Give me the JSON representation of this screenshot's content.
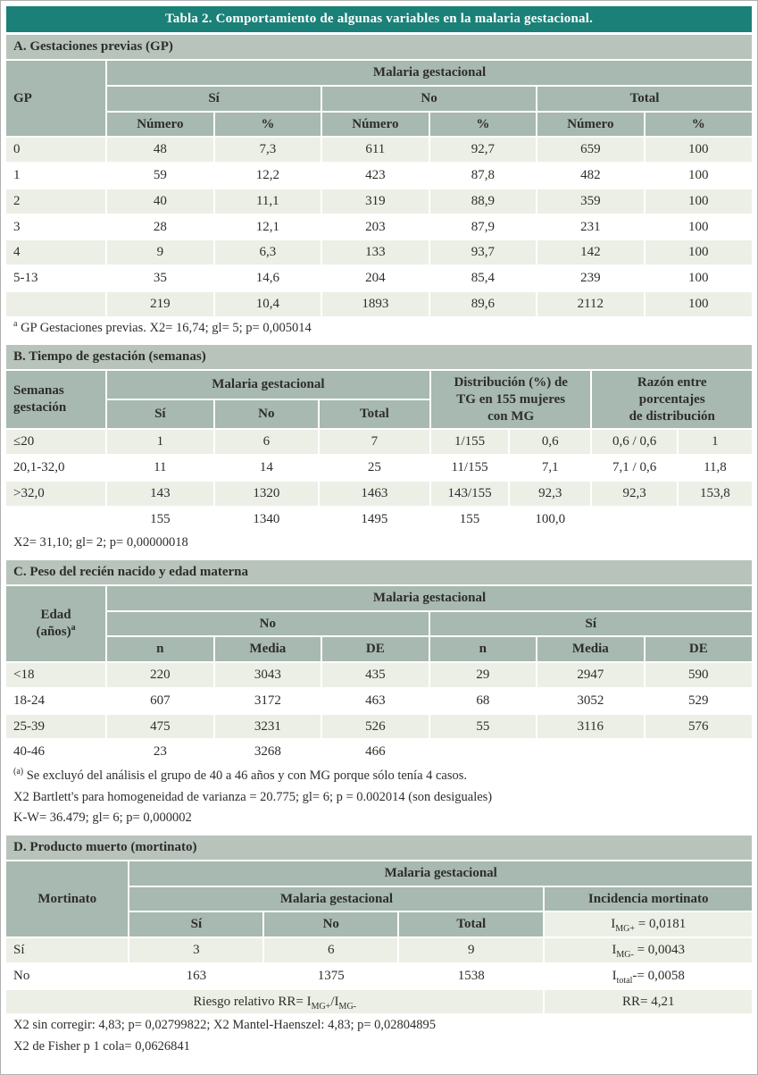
{
  "title": "Tabla 2. Comportamiento de algunas variables en la malaria gestacional.",
  "colors": {
    "title_bar": "#1a8078",
    "title_text": "#ffffff",
    "section_header": "#b7c3bb",
    "table_header": "#a7b9b0",
    "row_shaded": "#ecefe6",
    "row_white": "#ffffff",
    "text": "#2e2d2b"
  },
  "sections": [
    {
      "id": "A",
      "header": "A. Gestaciones previas (GP)",
      "table": {
        "header_rows": [
          [
            {
              "t": "GP",
              "rs": 3,
              "al": "l"
            },
            {
              "t": "Malaria gestacional",
              "cs": 6
            }
          ],
          [
            {
              "t": "Sí",
              "cs": 2
            },
            {
              "t": "No",
              "cs": 2
            },
            {
              "t": "Total",
              "cs": 2
            }
          ],
          [
            {
              "t": "Número"
            },
            {
              "t": "%"
            },
            {
              "t": "Número"
            },
            {
              "t": "%"
            },
            {
              "t": "Número"
            },
            {
              "t": "%"
            }
          ]
        ],
        "rows": [
          [
            "0",
            "48",
            "7,3",
            "611",
            "92,7",
            "659",
            "100"
          ],
          [
            "1",
            "59",
            "12,2",
            "423",
            "87,8",
            "482",
            "100"
          ],
          [
            "2",
            "40",
            "11,1",
            "319",
            "88,9",
            "359",
            "100"
          ],
          [
            "3",
            "28",
            "12,1",
            "203",
            "87,9",
            "231",
            "100"
          ],
          [
            "4",
            "9",
            "6,3",
            "133",
            "93,7",
            "142",
            "100"
          ],
          [
            "5-13",
            "35",
            "14,6",
            "204",
            "85,4",
            "239",
            "100"
          ],
          [
            "",
            "219",
            "10,4",
            "1893",
            "89,6",
            "2112",
            "100"
          ]
        ]
      },
      "footnotes": [
        "^a^ GP Gestaciones previas. X2= 16,74; gl= 5; p= 0,005014"
      ]
    },
    {
      "id": "B",
      "header": "B. Tiempo de gestación (semanas)",
      "table": {
        "header_rows": [
          [
            {
              "t": "Semanas\ngestación",
              "rs": 2,
              "al": "l"
            },
            {
              "t": "Malaria gestacional",
              "cs": 3
            },
            {
              "t": "Distribución (%) de\nTG en 155 mujeres\ncon MG",
              "cs": 2,
              "rs": 2
            },
            {
              "t": "Razón entre\nporcentajes\nde distribución",
              "cs": 2,
              "rs": 2
            }
          ],
          [
            {
              "t": "Sí"
            },
            {
              "t": "No"
            },
            {
              "t": "Total"
            }
          ]
        ],
        "rows": [
          [
            "≤20",
            "1",
            "6",
            "7",
            "1/155",
            "0,6",
            "0,6 / 0,6",
            "1"
          ],
          [
            "20,1-32,0",
            "11",
            "14",
            "25",
            "11/155",
            "7,1",
            "7,1 / 0,6",
            "11,8"
          ],
          [
            ">32,0",
            "143",
            "1320",
            "1463",
            "143/155",
            "92,3",
            "92,3",
            "153,8"
          ],
          [
            "",
            "155",
            "1340",
            "1495",
            "155",
            "100,0",
            "",
            ""
          ]
        ]
      },
      "footnotes": [
        "X2= 31,10; gl= 2; p= 0,00000018"
      ]
    },
    {
      "id": "C",
      "header": "C. Peso del recién nacido y edad materna",
      "table": {
        "header_rows": [
          [
            {
              "t": "Edad\n(años)^a^",
              "rs": 3
            },
            {
              "t": "Malaria gestacional",
              "cs": 6
            }
          ],
          [
            {
              "t": "No",
              "cs": 3
            },
            {
              "t": "Sí",
              "cs": 3
            }
          ],
          [
            {
              "t": "n"
            },
            {
              "t": "Media"
            },
            {
              "t": "DE"
            },
            {
              "t": "n"
            },
            {
              "t": "Media"
            },
            {
              "t": "DE"
            }
          ]
        ],
        "rows": [
          [
            "<18",
            "220",
            "3043",
            "435",
            "29",
            "2947",
            "590"
          ],
          [
            "18-24",
            "607",
            "3172",
            "463",
            "68",
            "3052",
            "529"
          ],
          [
            "25-39",
            "475",
            "3231",
            "526",
            "55",
            "3116",
            "576"
          ],
          [
            "40-46",
            "23",
            "3268",
            "466",
            "",
            "",
            ""
          ]
        ]
      },
      "footnotes": [
        "^(a)^ Se excluyó del análisis el grupo de 40 a 46 años y con MG porque sólo tenía 4 casos.",
        "X2 Bartlett's para homogeneidad de varianza = 20.775; gl= 6; p = 0.002014 (son desiguales)",
        "K-W= 36.479; gl= 6; p= 0,000002"
      ]
    },
    {
      "id": "D",
      "header": "D. Producto muerto (mortinato)",
      "table": {
        "header_rows": [
          [
            {
              "t": "Mortinato",
              "rs": 3
            },
            {
              "t": "Malaria gestacional",
              "cs": 4
            }
          ],
          [
            {
              "t": "Malaria gestacional",
              "cs": 3
            },
            {
              "t": "Incidencia mortinato"
            }
          ],
          [
            {
              "t": "Sí"
            },
            {
              "t": "No"
            },
            {
              "t": "Total"
            },
            {
              "t": "I~MG+~ = 0,0181",
              "d": 1
            }
          ]
        ],
        "rows": [
          [
            "Sí",
            "3",
            "6",
            "9",
            "I~MG-~ = 0,0043"
          ],
          [
            "No",
            "163",
            "1375",
            "1538",
            "I~total~-= 0,0058"
          ],
          [
            {
              "t": "Riesgo relativo RR= I~MG+~/I~MG-~",
              "cs": 4
            },
            {
              "t": "RR= 4,21"
            }
          ]
        ]
      },
      "footnotes": [
        "X2 sin corregir: 4,83; p= 0,02799822; X2 Mantel-Haenszel: 4,83; p= 0,02804895",
        "X2 de Fisher p 1 cola= 0,0626841"
      ]
    }
  ]
}
